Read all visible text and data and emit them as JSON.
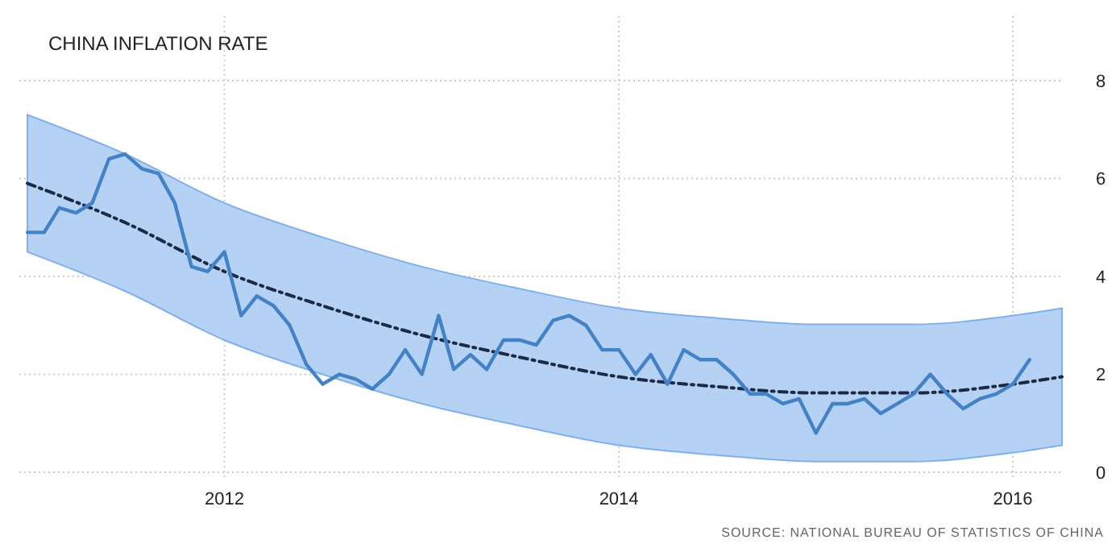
{
  "chart_data": {
    "type": "line",
    "title": "CHINA INFLATION RATE",
    "annotations": [
      "SOURCE: NATIONAL BUREAU OF STATISTICS OF CHINA"
    ],
    "x": [
      "2011-01",
      "2011-02",
      "2011-03",
      "2011-04",
      "2011-05",
      "2011-06",
      "2011-07",
      "2011-08",
      "2011-09",
      "2011-10",
      "2011-11",
      "2011-12",
      "2012-01",
      "2012-02",
      "2012-03",
      "2012-04",
      "2012-05",
      "2012-06",
      "2012-07",
      "2012-08",
      "2012-09",
      "2012-10",
      "2012-11",
      "2012-12",
      "2013-01",
      "2013-02",
      "2013-03",
      "2013-04",
      "2013-05",
      "2013-06",
      "2013-07",
      "2013-08",
      "2013-09",
      "2013-10",
      "2013-11",
      "2013-12",
      "2014-01",
      "2014-02",
      "2014-03",
      "2014-04",
      "2014-05",
      "2014-06",
      "2014-07",
      "2014-08",
      "2014-09",
      "2014-10",
      "2014-11",
      "2014-12",
      "2015-01",
      "2015-02",
      "2015-03",
      "2015-04",
      "2015-05",
      "2015-06",
      "2015-07",
      "2015-08",
      "2015-09",
      "2015-10",
      "2015-11",
      "2015-12",
      "2016-01",
      "2016-02"
    ],
    "series": [
      {
        "color": "#4382c6",
        "line_style": "solid",
        "values": [
          4.9,
          4.9,
          5.4,
          5.3,
          5.5,
          6.4,
          6.5,
          6.2,
          6.1,
          5.5,
          4.2,
          4.1,
          4.5,
          3.2,
          3.6,
          3.4,
          3.0,
          2.2,
          1.8,
          2.0,
          1.9,
          1.7,
          2.0,
          2.5,
          2.0,
          3.2,
          2.1,
          2.4,
          2.1,
          2.7,
          2.7,
          2.6,
          3.1,
          3.2,
          3.0,
          2.5,
          2.5,
          2.0,
          2.4,
          1.8,
          2.5,
          2.3,
          2.3,
          2.0,
          1.6,
          1.6,
          1.4,
          1.5,
          0.8,
          1.4,
          1.4,
          1.5,
          1.2,
          1.4,
          1.6,
          2.0,
          1.6,
          1.3,
          1.5,
          1.6,
          1.8,
          2.3
        ]
      },
      {
        "color": "#1c2b45",
        "line_style": "dashed",
        "x": [
          "2011-01",
          "2011-07",
          "2012-01",
          "2012-07",
          "2013-01",
          "2013-07",
          "2014-01",
          "2014-07",
          "2015-01",
          "2015-07",
          "2016-01",
          "2016-04"
        ],
        "values": [
          5.9,
          5.1,
          4.1,
          3.4,
          2.8,
          2.35,
          1.95,
          1.75,
          1.62,
          1.62,
          1.8,
          1.95
        ],
        "lower": [
          4.5,
          3.7,
          2.7,
          2.0,
          1.4,
          0.95,
          0.55,
          0.35,
          0.22,
          0.22,
          0.4,
          0.55
        ],
        "upper": [
          7.3,
          6.5,
          5.5,
          4.8,
          4.2,
          3.75,
          3.35,
          3.15,
          3.02,
          3.02,
          3.2,
          3.35
        ]
      }
    ],
    "xlim": [
      "2010-12-17",
      "2016-04-04"
    ],
    "xticks": [
      "2012",
      "2014",
      "2016"
    ],
    "ylim": [
      0,
      8
    ],
    "yticks": [
      0,
      2,
      4,
      6,
      8
    ],
    "grid": true
  }
}
